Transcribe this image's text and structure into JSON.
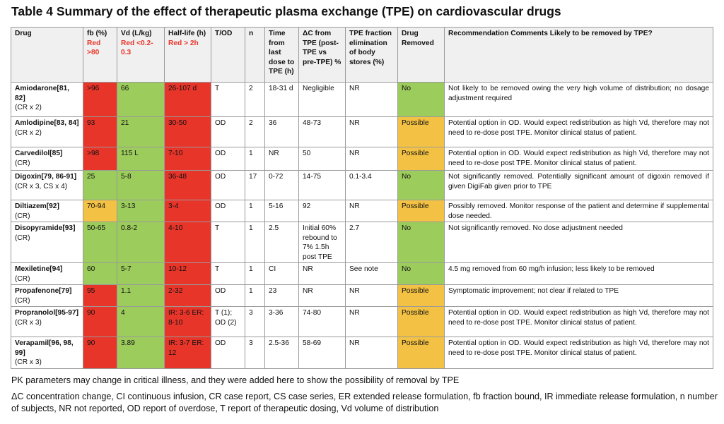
{
  "title": "Table 4  Summary of the effect of therapeutic plasma exchange (TPE) on cardiovascular drugs",
  "colors": {
    "red": "#e8352a",
    "green": "#9ccc5c",
    "orange": "#f3c244",
    "header_bg": "#f0f0f0"
  },
  "headers": [
    {
      "label": "Drug",
      "note": ""
    },
    {
      "label": "fb (%)",
      "note": "Red >80"
    },
    {
      "label": "Vd (L/kg)",
      "note": "Red <0.2-0.3"
    },
    {
      "label": "Half-life (h)",
      "note": "Red > 2h"
    },
    {
      "label": "T/OD",
      "note": ""
    },
    {
      "label": "n",
      "note": ""
    },
    {
      "label": "Time from last dose to TPE (h)",
      "note": ""
    },
    {
      "label": "ΔC from TPE (post-TPE vs pre-TPE) %",
      "note": ""
    },
    {
      "label": "TPE fraction elimination of body stores (%)",
      "note": ""
    },
    {
      "label": "Drug Removed",
      "note": ""
    },
    {
      "label": "Recommendation Comments Likely to be removed by TPE?",
      "note": ""
    }
  ],
  "rows": [
    {
      "drug": "Amiodarone[81, 82]",
      "sub": "(CR x 2)",
      "fb": "&gt;96",
      "vd": "66",
      "hl": "26-107 d",
      "tod": "T",
      "n": "2",
      "time": "18-31 d",
      "dc": "Negligible",
      "frac": "NR",
      "removed": "No",
      "rec": "Not likely to be removed owing the very high volume of distribution; no dosage adjustment required",
      "c": [
        "red",
        "green",
        "red",
        "green"
      ]
    },
    {
      "drug": "Amlodipine[83, 84]",
      "sub": "(CR x 2)",
      "fb": "93",
      "vd": "21",
      "hl": "30-50",
      "tod": "OD",
      "n": "2",
      "time": "36",
      "dc": "48-73",
      "frac": "NR",
      "removed": "Possible",
      "rec": "Potential option in OD. Would expect redistribution as high Vd, therefore may not need to re-dose post TPE. Monitor clinical status of patient.",
      "c": [
        "red",
        "green",
        "red",
        "orange"
      ]
    },
    {
      "drug": "Carvedilol[85]",
      "sub": "(CR)",
      "fb": ">98",
      "vd": "115 L",
      "hl": "7-10",
      "tod": "OD",
      "n": "1",
      "time": "NR",
      "dc": "50",
      "frac": "NR",
      "removed": "Possible",
      "rec": "Potential option in OD. Would expect redistribution as high Vd, therefore may not need to re-dose post TPE. Monitor clinical status of patient.",
      "c": [
        "red",
        "green",
        "red",
        "orange"
      ]
    },
    {
      "drug": "Digoxin[79, 86-91]",
      "sub": "(CR x 3, CS x 4)",
      "fb": "25",
      "vd": "5-8",
      "hl": "36-48",
      "tod": "OD",
      "n": "17",
      "time": "0-72",
      "dc": "14-75",
      "frac": "0.1-3.4",
      "removed": "No",
      "rec": "Not significantly removed. Potentially significant amount of digoxin removed if given DigiFab given prior to TPE",
      "c": [
        "green",
        "green",
        "red",
        "green"
      ]
    },
    {
      "drug": "Diltiazem[92]",
      "sub": "(CR)",
      "fb": "70-94",
      "vd": "3-13",
      "hl": "3-4",
      "tod": "OD",
      "n": "1",
      "time": "5-16",
      "dc": "92",
      "frac": "NR",
      "removed": "Possible",
      "rec": "Possibly removed. Monitor response of the patient and determine if supplemental dose needed.",
      "c": [
        "orange",
        "green",
        "red",
        "orange"
      ]
    },
    {
      "drug": "Disopyramide[93]",
      "sub": "(CR)",
      "fb": "50-65",
      "vd": "0.8-2",
      "hl": "4-10",
      "tod": "T",
      "n": "1",
      "time": "2.5",
      "dc": "Initial 60% rebound to 7% 1.5h post TPE",
      "frac": "2.7",
      "removed": "No",
      "rec": "Not significantly removed. No dose adjustment needed",
      "c": [
        "green",
        "green",
        "red",
        "green"
      ]
    },
    {
      "drug": "Mexiletine[94]",
      "sub": "(CR)",
      "fb": "60",
      "vd": "5-7",
      "hl": "10-12",
      "tod": "T",
      "n": "1",
      "time": "CI",
      "dc": "NR",
      "frac": "See note",
      "removed": "No",
      "rec": "4.5 mg removed from 60 mg/h infusion; less likely to be removed",
      "c": [
        "green",
        "green",
        "red",
        "green"
      ]
    },
    {
      "drug": "Propafenone[79]",
      "sub": "(CR)",
      "fb": "95",
      "vd": "1.1",
      "hl": "2-32",
      "tod": "OD",
      "n": "1",
      "time": "23",
      "dc": "NR",
      "frac": "NR",
      "removed": "Possible",
      "rec": "Symptomatic improvement; not clear if related to TPE",
      "c": [
        "red",
        "green",
        "red",
        "orange"
      ]
    },
    {
      "drug": "Propranolol[95-97]",
      "sub": "(CR x 3)",
      "fb": "90",
      "vd": "4",
      "hl": "IR: 3-6 ER: 8-10",
      "tod": "T (1); OD (2)",
      "n": "3",
      "time": "3-36",
      "dc": "74-80",
      "frac": "NR",
      "removed": "Possible",
      "rec": "Potential option in OD. Would expect redistribution as high Vd, therefore may not need to re-dose post TPE. Monitor clinical status of patient.",
      "c": [
        "red",
        "green",
        "red",
        "orange"
      ]
    },
    {
      "drug": "Verapamil[96, 98, 99]",
      "sub": "(CR x 3)",
      "fb": "90",
      "vd": "3.89",
      "hl": "IR: 3-7 ER: 12",
      "tod": "OD",
      "n": "3",
      "time": "2.5-36",
      "dc": "58-69",
      "frac": "NR",
      "removed": "Possible",
      "rec": "Potential option in OD. Would expect redistribution as high Vd, therefore may not need to re-dose post TPE. Monitor clinical status of patient.",
      "c": [
        "red",
        "green",
        "red",
        "orange"
      ]
    }
  ],
  "footnote": "PK parameters may change in critical illness, and they were added here to show the possibility of removal by TPE",
  "abbreviations": "ΔC concentration change, CI continuous infusion, CR case report, CS case series, ER extended release formulation, fb fraction bound, IR immediate release formulation, n number of subjects, NR not reported, OD report of overdose, T report of therapeutic dosing, Vd volume of distribution"
}
